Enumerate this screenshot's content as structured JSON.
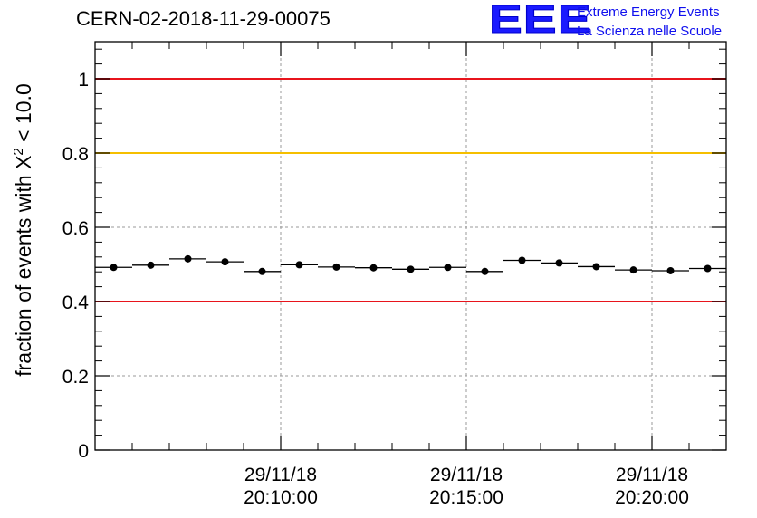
{
  "header": {
    "title": "CERN-02-2018-11-29-00075",
    "logo_mark": "EEE",
    "logo_line1": "Extreme Energy Events",
    "logo_line2": "La Scienza nelle Scuole"
  },
  "colors": {
    "red_line": "#e8141c",
    "yellow_line": "#f5bf00",
    "grid": "#9a9a9a",
    "marker": "#000000",
    "logo_blue": "#1a1aff"
  },
  "chart_data": {
    "type": "scatter",
    "title": "CERN-02-2018-11-29-00075",
    "xlabel": "",
    "ylabel_prefix": "fraction of events with ",
    "ylabel_symbol": "X",
    "ylabel_power": "2",
    "ylabel_suffix": " < 10.0",
    "xlim_minutes": [
      6.0,
      23.0
    ],
    "ylim": [
      0,
      1.1
    ],
    "y_ticks": [
      0,
      0.2,
      0.4,
      0.6,
      0.8,
      1
    ],
    "y_tick_labels": [
      "0",
      "0.2",
      "0.4",
      "0.6",
      "0.8",
      "1"
    ],
    "x_major_ticks_minutes": [
      11,
      16,
      21
    ],
    "x_tick_labels": [
      {
        "date": "29/11/18",
        "time": "20:10:00"
      },
      {
        "date": "29/11/18",
        "time": "20:15:00"
      },
      {
        "date": "29/11/18",
        "time": "20:20:00"
      }
    ],
    "x_minor_ticks_minutes": [
      7,
      8,
      9,
      10,
      12,
      13,
      14,
      15,
      17,
      18,
      19,
      20,
      22
    ],
    "grid": true,
    "reference_lines": [
      {
        "y": 1.0,
        "color": "red"
      },
      {
        "y": 0.8,
        "color": "yellow"
      },
      {
        "y": 0.4,
        "color": "red"
      }
    ],
    "bin_width_minutes": 1.0,
    "x_minutes": [
      6.5,
      7.5,
      8.5,
      9.5,
      10.5,
      11.5,
      12.5,
      13.5,
      14.5,
      15.5,
      16.5,
      17.5,
      18.5,
      19.5,
      20.5,
      21.5,
      22.5
    ],
    "values": [
      0.492,
      0.498,
      0.515,
      0.507,
      0.481,
      0.499,
      0.493,
      0.491,
      0.487,
      0.492,
      0.481,
      0.511,
      0.504,
      0.494,
      0.485,
      0.483,
      0.489
    ],
    "errors": [
      0.005,
      0.005,
      0.005,
      0.005,
      0.005,
      0.005,
      0.005,
      0.005,
      0.005,
      0.005,
      0.005,
      0.005,
      0.005,
      0.005,
      0.005,
      0.005,
      0.005
    ]
  }
}
